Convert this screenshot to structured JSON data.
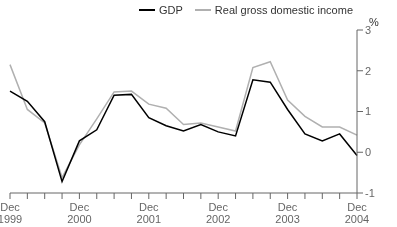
{
  "chart_data": {
    "type": "line",
    "ylabel": "%",
    "categories": [
      "Dec\n1999",
      null,
      null,
      null,
      "Dec\n2000",
      null,
      null,
      null,
      "Dec\n2001",
      null,
      null,
      null,
      "Dec\n2002",
      null,
      null,
      null,
      "Dec\n2003",
      null,
      null,
      null,
      "Dec\n2004"
    ],
    "series": [
      {
        "name": "GDP",
        "color": "#000000",
        "values": [
          1.5,
          1.25,
          0.75,
          -0.72,
          0.28,
          0.55,
          1.4,
          1.42,
          0.85,
          0.65,
          0.52,
          0.68,
          0.5,
          0.4,
          1.78,
          1.72,
          1.05,
          0.45,
          0.28,
          0.45,
          -0.08
        ]
      },
      {
        "name": "Real gross domestic income",
        "color": "#b0b0b0",
        "values": [
          2.15,
          1.05,
          0.72,
          -0.62,
          0.18,
          0.82,
          1.48,
          1.5,
          1.18,
          1.08,
          0.68,
          0.72,
          0.62,
          0.52,
          2.08,
          2.22,
          1.28,
          0.88,
          0.62,
          0.62,
          0.42
        ]
      }
    ],
    "ylim": [
      -1,
      3
    ],
    "yticks": [
      -1,
      0,
      1,
      2,
      3
    ],
    "grid": false,
    "legend": "upper right"
  }
}
